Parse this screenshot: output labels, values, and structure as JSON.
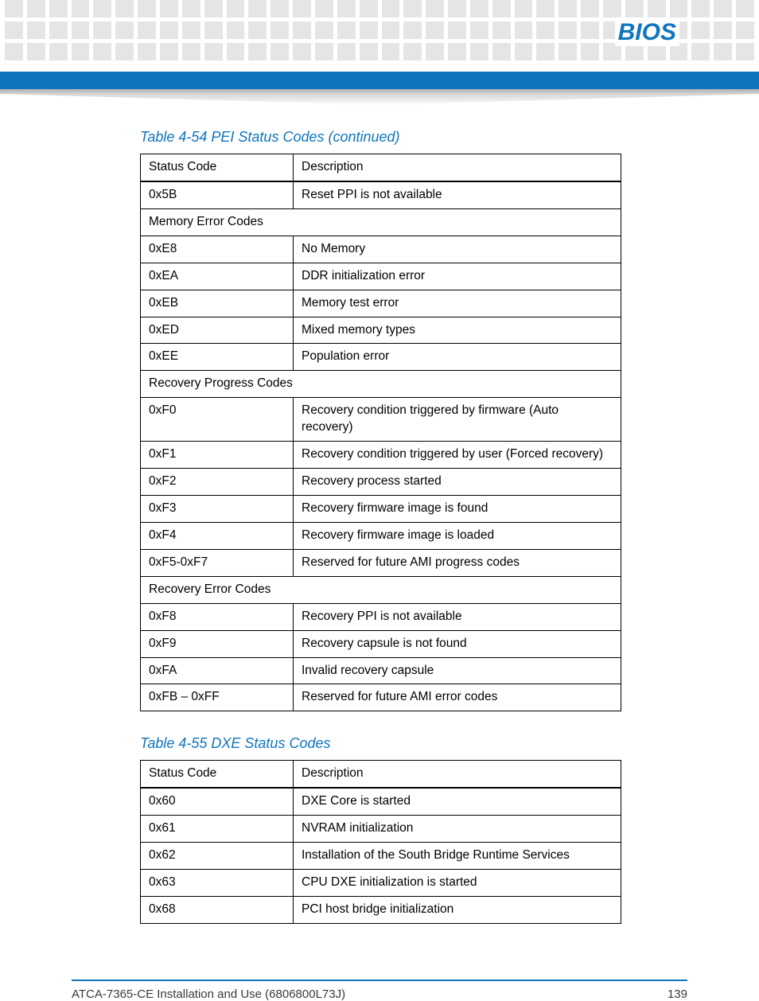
{
  "colors": {
    "brand_blue": "#0f75bc",
    "square_gray": "#e5e5e5",
    "text_black": "#000000",
    "footer_gray": "#3a3a3a"
  },
  "header": {
    "title": "BIOS"
  },
  "table1": {
    "title": "Table 4-54 PEI Status Codes (continued)",
    "col1_label": "Status Code",
    "col2_label": "Description",
    "rows": [
      {
        "code": "0x5B",
        "desc": "Reset PPI is not available"
      },
      {
        "section": "Memory Error Codes"
      },
      {
        "code": "0xE8",
        "desc": "No Memory"
      },
      {
        "code": "0xEA",
        "desc": "DDR initialization error"
      },
      {
        "code": "0xEB",
        "desc": "Memory test error"
      },
      {
        "code": "0xED",
        "desc": "Mixed memory types"
      },
      {
        "code": "0xEE",
        "desc": "Population error"
      },
      {
        "section": "Recovery Progress Codes"
      },
      {
        "code": "0xF0",
        "desc": "Recovery condition triggered by firmware (Auto recovery)"
      },
      {
        "code": "0xF1",
        "desc": "Recovery condition triggered by user (Forced recovery)"
      },
      {
        "code": "0xF2",
        "desc": "Recovery process started"
      },
      {
        "code": "0xF3",
        "desc": "Recovery firmware image is found"
      },
      {
        "code": "0xF4",
        "desc": "Recovery firmware image is loaded"
      },
      {
        "code": "0xF5-0xF7",
        "desc": "Reserved for future AMI progress codes"
      },
      {
        "section": "Recovery Error Codes"
      },
      {
        "code": "0xF8",
        "desc": "Recovery PPI is not available"
      },
      {
        "code": "0xF9",
        "desc": "Recovery capsule is not found"
      },
      {
        "code": "0xFA",
        "desc": "Invalid recovery capsule"
      },
      {
        "code": "0xFB – 0xFF",
        "desc": "Reserved for future AMI error codes"
      }
    ]
  },
  "table2": {
    "title": "Table 4-55 DXE Status Codes",
    "col1_label": "Status Code",
    "col2_label": "Description",
    "rows": [
      {
        "code": "0x60",
        "desc": "DXE Core is started"
      },
      {
        "code": "0x61",
        "desc": "NVRAM initialization"
      },
      {
        "code": "0x62",
        "desc": "Installation of the South Bridge Runtime Services"
      },
      {
        "code": "0x63",
        "desc": "CPU DXE initialization is started"
      },
      {
        "code": "0x68",
        "desc": "PCI host bridge initialization"
      }
    ]
  },
  "footer": {
    "doc_title": "ATCA-7365-CE Installation and Use (6806800L73J)",
    "page_number": "139"
  }
}
